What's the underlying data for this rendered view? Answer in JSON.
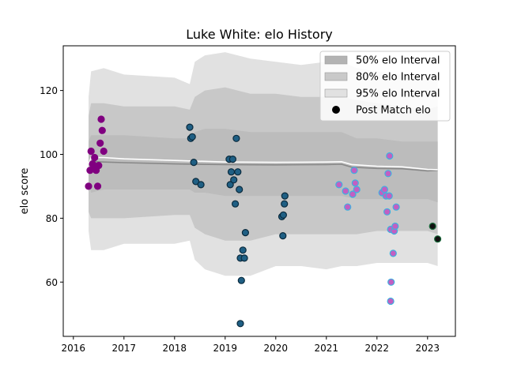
{
  "chart_data": {
    "type": "scatter",
    "title": "Luke White: elo History",
    "xlabel": "",
    "ylabel": "elo score",
    "xlim": [
      2015.8,
      2023.55
    ],
    "ylim": [
      43,
      134
    ],
    "x_ticks": [
      2016,
      2017,
      2018,
      2019,
      2020,
      2021,
      2022,
      2023
    ],
    "x_tick_labels": [
      "2016",
      "2017",
      "2018",
      "2019",
      "2020",
      "2021",
      "2022",
      "2023"
    ],
    "y_ticks": [
      60,
      80,
      100,
      120
    ],
    "y_tick_labels": [
      "60",
      "80",
      "100",
      "120"
    ],
    "grid": false,
    "legend_position": "top-right",
    "legend": [
      {
        "label": "50% elo Interval",
        "swatch": "#b3b3b3",
        "kind": "patch"
      },
      {
        "label": "80% elo Interval",
        "swatch": "#c9c9c9",
        "kind": "patch"
      },
      {
        "label": "95% elo Interval",
        "swatch": "#e1e1e1",
        "kind": "patch"
      },
      {
        "label": "Post Match elo",
        "swatch": "#000000",
        "kind": "marker"
      }
    ],
    "colors": {
      "band95": "#e1e1e1",
      "band80": "#c8c8c8",
      "band50": "#bcbcbc",
      "mean_line": "#888888",
      "elo_line": "#ffffff"
    },
    "bands": {
      "x": [
        2016.3,
        2016.35,
        2016.6,
        2017.0,
        2018.0,
        2018.3,
        2018.4,
        2018.6,
        2019.0,
        2019.5,
        2020.0,
        2020.5,
        2021.0,
        2021.3,
        2021.6,
        2022.0,
        2022.5,
        2023.0,
        2023.2
      ],
      "p95_upper": [
        118,
        126,
        127,
        125,
        124,
        122,
        129,
        131,
        132,
        130,
        129,
        128,
        129,
        129,
        127,
        126,
        125,
        124,
        125
      ],
      "p95_lower": [
        76,
        70,
        70,
        72,
        72,
        73,
        67,
        64,
        62,
        62,
        65,
        65,
        64,
        65,
        65,
        66,
        66,
        66,
        65
      ],
      "p80_upper": [
        112,
        116,
        116,
        115,
        115,
        114,
        118,
        120,
        121,
        119,
        119,
        118,
        118,
        118,
        117,
        116,
        115,
        114,
        115
      ],
      "p80_lower": [
        82,
        80,
        80,
        80,
        81,
        81,
        77,
        75,
        73,
        73,
        75,
        75,
        75,
        75,
        75,
        76,
        76,
        76,
        75
      ],
      "p50_upper": [
        104,
        106,
        106,
        106,
        105,
        105,
        107,
        108,
        108,
        107,
        107,
        107,
        107,
        107,
        105,
        105,
        104,
        104,
        104
      ],
      "p50_lower": [
        91,
        88,
        89,
        89,
        89,
        89,
        88,
        88,
        87,
        87,
        87,
        87,
        87,
        87,
        86,
        86,
        86,
        86,
        85
      ]
    },
    "mean_line": {
      "x": [
        2016.3,
        2016.35,
        2016.6,
        2017.0,
        2018.0,
        2019.0,
        2020.0,
        2021.0,
        2021.3,
        2021.5,
        2022.0,
        2022.5,
        2023.0,
        2023.2
      ],
      "y": [
        97.8,
        97.8,
        97.6,
        97.4,
        97.0,
        96.8,
        96.7,
        96.8,
        96.9,
        96.0,
        95.6,
        95.5,
        94.8,
        95.0
      ]
    },
    "elo_line": {
      "x": [
        2016.3,
        2016.35,
        2016.6,
        2017.0,
        2018.0,
        2019.0,
        2020.0,
        2021.0,
        2021.3,
        2021.5,
        2022.0,
        2022.5,
        2023.0,
        2023.2
      ],
      "y": [
        97.0,
        99.0,
        99.0,
        98.6,
        98.1,
        97.6,
        97.5,
        97.6,
        97.7,
        96.8,
        96.3,
        96.1,
        95.3,
        95.2
      ]
    },
    "series": [
      {
        "color": "#800080",
        "edge": "#800080",
        "points": [
          [
            2016.3,
            90
          ],
          [
            2016.33,
            95
          ],
          [
            2016.35,
            101
          ],
          [
            2016.38,
            97
          ],
          [
            2016.4,
            96
          ],
          [
            2016.42,
            99
          ],
          [
            2016.45,
            95
          ],
          [
            2016.48,
            90
          ],
          [
            2016.5,
            96.5
          ],
          [
            2016.53,
            103.5
          ],
          [
            2016.55,
            111
          ],
          [
            2016.57,
            107.5
          ],
          [
            2016.6,
            101
          ]
        ]
      },
      {
        "color": "#1f5f84",
        "edge": "#0a2a3d",
        "points": [
          [
            2018.3,
            108.5
          ],
          [
            2018.32,
            105
          ],
          [
            2018.35,
            105.5
          ],
          [
            2018.38,
            97.5
          ],
          [
            2018.42,
            91.5
          ],
          [
            2018.52,
            90.5
          ],
          [
            2019.08,
            98.5
          ],
          [
            2019.1,
            90.5
          ],
          [
            2019.12,
            94.5
          ],
          [
            2019.15,
            98.5
          ],
          [
            2019.17,
            92
          ],
          [
            2019.2,
            84.5
          ],
          [
            2019.22,
            105
          ],
          [
            2019.25,
            94.5
          ],
          [
            2019.28,
            89
          ],
          [
            2019.3,
            67.5
          ],
          [
            2019.32,
            60.5
          ],
          [
            2019.3,
            47
          ],
          [
            2019.35,
            70
          ],
          [
            2019.38,
            67.5
          ],
          [
            2019.4,
            75.5
          ],
          [
            2020.12,
            80.5
          ],
          [
            2020.14,
            74.5
          ],
          [
            2020.15,
            81
          ],
          [
            2020.17,
            84.5
          ],
          [
            2020.18,
            87
          ]
        ]
      },
      {
        "color": "#c25fc2",
        "edge": "#3fb0e0",
        "points": [
          [
            2021.25,
            90.5
          ],
          [
            2021.38,
            88.5
          ],
          [
            2021.42,
            83.5
          ],
          [
            2021.52,
            87.5
          ],
          [
            2021.55,
            95
          ],
          [
            2021.57,
            91
          ],
          [
            2021.6,
            89
          ],
          [
            2022.1,
            88
          ],
          [
            2022.15,
            89
          ],
          [
            2022.18,
            87
          ],
          [
            2022.2,
            82
          ],
          [
            2022.22,
            94
          ],
          [
            2022.24,
            87
          ],
          [
            2022.25,
            99.5
          ],
          [
            2022.27,
            76.5
          ],
          [
            2022.28,
            60
          ],
          [
            2022.27,
            54
          ],
          [
            2022.32,
            69
          ],
          [
            2022.34,
            76
          ],
          [
            2022.36,
            77.5
          ],
          [
            2022.38,
            83.5
          ]
        ]
      },
      {
        "color": "#111111",
        "edge": "#1a6b3c",
        "points": [
          [
            2023.1,
            77.5
          ],
          [
            2023.2,
            73.5
          ]
        ]
      }
    ]
  }
}
